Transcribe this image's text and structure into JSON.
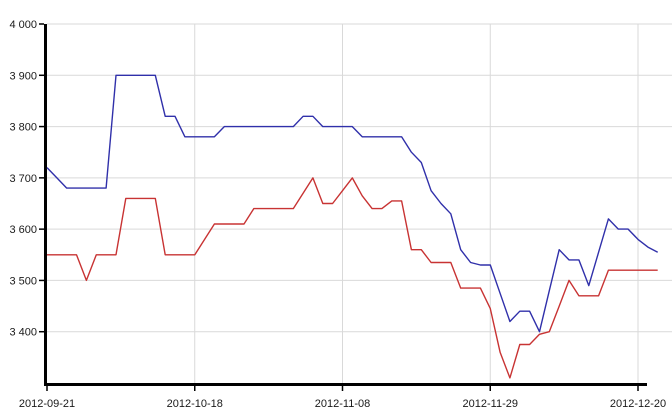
{
  "colors": {
    "background": "#ffffff",
    "axis": "#000000",
    "grid": "#d9d9d9",
    "text": "#1a1a1a",
    "series_blue": "#3030aa",
    "series_red": "#c83333"
  },
  "chart_data": {
    "type": "line",
    "title": "",
    "xlabel": "",
    "ylabel": "",
    "grid": true,
    "legend_position": "none",
    "ylim": [
      3300,
      4000
    ],
    "y_tick_values": [
      4000,
      3900,
      3800,
      3700,
      3600,
      3500,
      3400
    ],
    "y_tick_labels": [
      "4 000",
      "3 900",
      "3 800",
      "3 700",
      "3 600",
      "3 500",
      "3 400"
    ],
    "x_tick_indices": [
      0,
      15,
      30,
      45,
      60
    ],
    "x_tick_labels": [
      "2012-09-21",
      "2012-10-18",
      "2012-11-08",
      "2012-11-29",
      "2012-12-20"
    ],
    "x_count": 63,
    "series": [
      {
        "name": "blue",
        "color": "#3030aa",
        "values": [
          3720,
          3700,
          3680,
          3680,
          3680,
          3680,
          3680,
          3900,
          3900,
          3900,
          3900,
          3900,
          3820,
          3820,
          3780,
          3780,
          3780,
          3780,
          3800,
          3800,
          3800,
          3800,
          3800,
          3800,
          3800,
          3800,
          3820,
          3820,
          3800,
          3800,
          3800,
          3800,
          3780,
          3780,
          3780,
          3780,
          3780,
          3750,
          3730,
          3675,
          3650,
          3630,
          3560,
          3535,
          3530,
          3530,
          3475,
          3420,
          3440,
          3440,
          3400,
          3480,
          3560,
          3540,
          3540,
          3490,
          3555,
          3620,
          3600,
          3600,
          3580,
          3565,
          3555
        ]
      },
      {
        "name": "red",
        "color": "#c83333",
        "values": [
          3550,
          3550,
          3550,
          3550,
          3500,
          3550,
          3550,
          3550,
          3660,
          3660,
          3660,
          3660,
          3550,
          3550,
          3550,
          3550,
          3580,
          3610,
          3610,
          3610,
          3610,
          3640,
          3640,
          3640,
          3640,
          3640,
          3670,
          3700,
          3650,
          3650,
          3675,
          3700,
          3665,
          3640,
          3640,
          3655,
          3655,
          3560,
          3560,
          3535,
          3535,
          3535,
          3485,
          3485,
          3485,
          3445,
          3360,
          3310,
          3375,
          3375,
          3395,
          3400,
          3450,
          3500,
          3470,
          3470,
          3470,
          3520,
          3520,
          3520,
          3520,
          3520,
          3520
        ]
      }
    ]
  }
}
